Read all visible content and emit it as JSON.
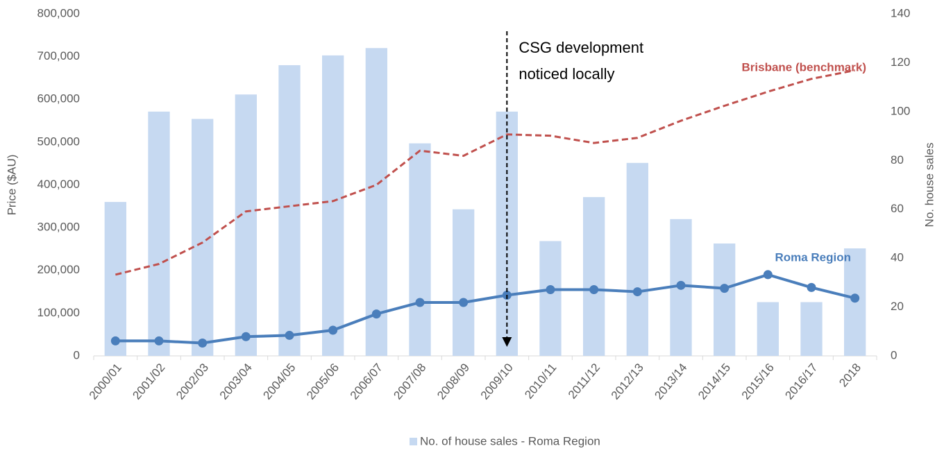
{
  "chart_data": {
    "type": "bar-line",
    "annotation": [
      "CSG development",
      "noticed locally"
    ],
    "annotation_category": "2009/10",
    "y_label": "Price ($AU)",
    "y2_label": "No. house sales",
    "categories": [
      "2000/01",
      "2001/02",
      "2002/03",
      "2003/04",
      "2004/05",
      "2005/06",
      "2006/07",
      "2007/08",
      "2008/09",
      "2009/10",
      "2010/11",
      "2011/12",
      "2012/13",
      "2013/14",
      "2014/15",
      "2015/16",
      "2016/17",
      "2018"
    ],
    "series": [
      {
        "name": "No. of house sales - Roma Region",
        "type": "bar",
        "axis": "y2",
        "color": "#c6d9f1",
        "values": [
          63,
          100,
          97,
          107,
          119,
          123,
          126,
          87,
          60,
          100,
          47,
          65,
          79,
          56,
          46,
          22,
          22,
          44
        ]
      },
      {
        "name": "Roma Region",
        "type": "line",
        "color": "#4a7ebb",
        "markers": true,
        "values": [
          35000,
          35000,
          30000,
          45000,
          48000,
          60000,
          98000,
          125000,
          125000,
          142000,
          155000,
          155000,
          150000,
          165000,
          158000,
          190000,
          160000,
          135000
        ]
      },
      {
        "name": "Brisbane (benchmark)",
        "type": "line",
        "color": "#c0504d",
        "dashed": true,
        "values": [
          190000,
          215000,
          265000,
          338000,
          350000,
          362000,
          400000,
          480000,
          468000,
          518000,
          515000,
          498000,
          510000,
          550000,
          585000,
          618000,
          648000,
          668000
        ]
      }
    ],
    "ylim": [
      0,
      800000
    ],
    "yticks": [
      0,
      {
        "value": 100000,
        "label": "100,000"
      },
      {
        "value": 200000,
        "label": "200,000"
      },
      {
        "value": 300000,
        "label": "300,000"
      },
      {
        "value": 400000,
        "label": "400,000"
      },
      {
        "value": 500000,
        "label": "500,000"
      },
      {
        "value": 600000,
        "label": "600,000"
      },
      {
        "value": 700000,
        "label": "700,000"
      },
      {
        "value": 800000,
        "label": "800,000"
      }
    ],
    "y2lim": [
      0,
      140
    ],
    "y2ticks": [
      0,
      20,
      40,
      60,
      80,
      100,
      120,
      140
    ],
    "legend": "bottom"
  }
}
